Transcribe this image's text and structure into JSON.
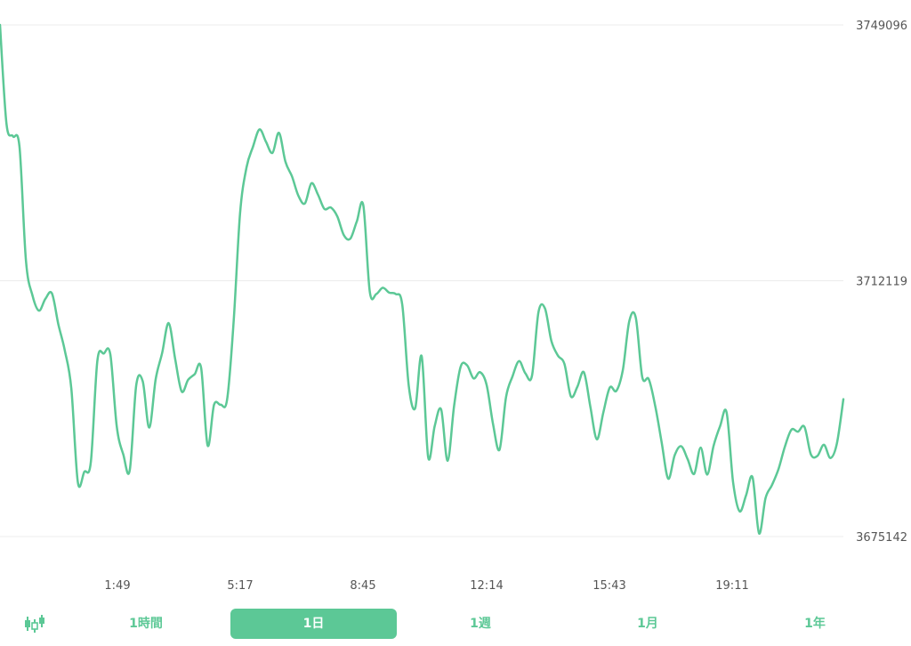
{
  "chart_data": {
    "type": "line",
    "color": "#5cc896",
    "y_ticks": [
      "3749096",
      "3712119",
      "3675142"
    ],
    "ylim": [
      3675142,
      3749096
    ],
    "x_ticks": [
      "1:49",
      "5:17",
      "8:45",
      "12:14",
      "15:43",
      "19:11"
    ],
    "series": [
      {
        "values": [
          3749096,
          3734800,
          3733000,
          3731500,
          3715000,
          3710000,
          3707800,
          3709500,
          3710300,
          3705800,
          3702000,
          3696500,
          3683000,
          3684500,
          3685900,
          3700500,
          3701600,
          3701500,
          3691000,
          3687000,
          3684700,
          3697000,
          3697600,
          3690900,
          3697900,
          3701700,
          3706000,
          3700800,
          3696100,
          3697800,
          3698600,
          3699500,
          3688300,
          3694200,
          3694200,
          3694900,
          3706000,
          3721800,
          3728500,
          3731500,
          3734000,
          3732200,
          3730600,
          3733500,
          3729300,
          3727200,
          3724400,
          3723300,
          3726200,
          3724600,
          3722500,
          3722700,
          3721400,
          3718700,
          3718200,
          3720700,
          3723000,
          3710500,
          3710200,
          3711100,
          3710400,
          3710200,
          3708700,
          3697000,
          3693700,
          3701200,
          3686600,
          3691100,
          3693500,
          3686100,
          3694100,
          3699700,
          3699900,
          3698000,
          3698900,
          3697100,
          3691400,
          3687700,
          3695300,
          3698300,
          3700500,
          3698700,
          3698400,
          3707600,
          3708100,
          3703400,
          3701300,
          3700100,
          3695400,
          3696800,
          3698900,
          3693900,
          3689200,
          3693100,
          3696700,
          3696200,
          3699200,
          3706300,
          3706800,
          3698200,
          3697900,
          3694000,
          3688700,
          3683500,
          3686900,
          3688200,
          3686300,
          3684200,
          3688000,
          3684100,
          3688300,
          3691100,
          3693100,
          3683000,
          3678800,
          3681100,
          3683700,
          3675600,
          3680700,
          3682600,
          3684900,
          3688200,
          3690600,
          3690300,
          3691000,
          3687000,
          3686800,
          3688400,
          3686500,
          3688600,
          3695000
        ]
      }
    ]
  },
  "toolbar": {
    "chart_type_icon": "candlestick-icon",
    "tabs": [
      {
        "label": "1時間"
      },
      {
        "label": "1日"
      },
      {
        "label": "1週"
      },
      {
        "label": "1月"
      },
      {
        "label": "1年"
      }
    ],
    "active_tab": "1日",
    "accent_color": "#5cc896"
  }
}
